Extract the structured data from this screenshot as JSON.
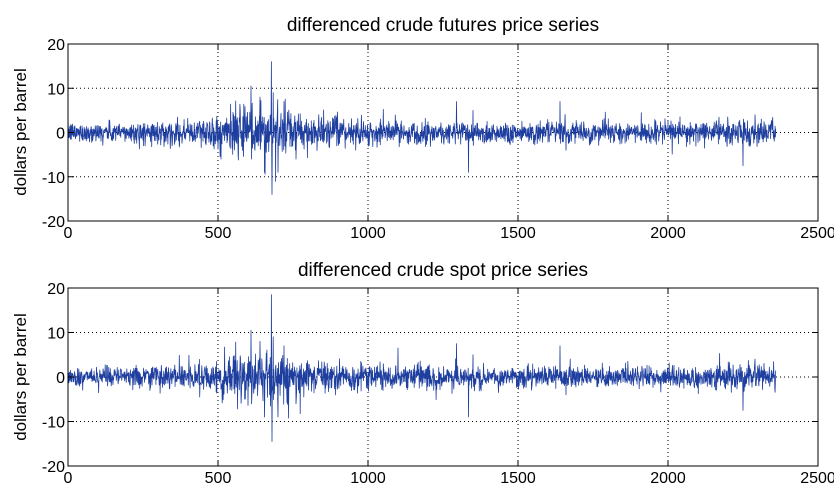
{
  "colors": {
    "series": "#1f3fa0",
    "axes": "#000000",
    "background": "#ffffff"
  },
  "chart_data": [
    {
      "type": "line",
      "title": "differenced crude futures price series",
      "xlabel": "",
      "ylabel": "dollars per barrel",
      "xlim": [
        0,
        2500
      ],
      "ylim": [
        -20,
        20
      ],
      "xticks": [
        0,
        500,
        1000,
        1500,
        2000,
        2500
      ],
      "yticks": [
        -20,
        -10,
        0,
        10,
        20
      ],
      "xtick_labels": [
        "0",
        "500",
        "1000",
        "1500",
        "2000",
        "2500"
      ],
      "ytick_labels": [
        "-20",
        "-10",
        "0",
        "10",
        "20"
      ],
      "grid": true,
      "n_points": 2360,
      "volatility_envelope": [
        [
          0,
          1.2
        ],
        [
          200,
          1.3
        ],
        [
          400,
          1.5
        ],
        [
          500,
          2.2
        ],
        [
          580,
          3.2
        ],
        [
          650,
          3.8
        ],
        [
          700,
          3.0
        ],
        [
          780,
          2.3
        ],
        [
          900,
          1.7
        ],
        [
          1100,
          1.4
        ],
        [
          1300,
          1.5
        ],
        [
          1500,
          1.4
        ],
        [
          1700,
          1.3
        ],
        [
          2000,
          1.3
        ],
        [
          2200,
          1.6
        ],
        [
          2360,
          1.5
        ]
      ],
      "spikes": [
        [
          610,
          10.5
        ],
        [
          612,
          -6
        ],
        [
          640,
          8
        ],
        [
          655,
          -9
        ],
        [
          678,
          16
        ],
        [
          680,
          -14
        ],
        [
          684,
          9
        ],
        [
          700,
          -9
        ],
        [
          720,
          7
        ],
        [
          760,
          -6
        ],
        [
          1295,
          7
        ],
        [
          1335,
          -9
        ],
        [
          1350,
          5
        ],
        [
          1640,
          7
        ],
        [
          1660,
          -4
        ],
        [
          2250,
          -7.5
        ],
        [
          2290,
          4
        ]
      ]
    },
    {
      "type": "line",
      "title": "differenced crude spot price series",
      "xlabel": "",
      "ylabel": "dollars per barrel",
      "xlim": [
        0,
        2500
      ],
      "ylim": [
        -20,
        20
      ],
      "xticks": [
        0,
        500,
        1000,
        1500,
        2000,
        2500
      ],
      "yticks": [
        -20,
        -10,
        0,
        10,
        20
      ],
      "xtick_labels": [
        "0",
        "500",
        "1000",
        "1500",
        "2000",
        "2500"
      ],
      "ytick_labels": [
        "-20",
        "-10",
        "0",
        "10",
        "20"
      ],
      "grid": true,
      "n_points": 2360,
      "volatility_envelope": [
        [
          0,
          1.2
        ],
        [
          200,
          1.3
        ],
        [
          400,
          1.5
        ],
        [
          500,
          2.2
        ],
        [
          580,
          3.2
        ],
        [
          650,
          3.8
        ],
        [
          700,
          3.0
        ],
        [
          780,
          2.3
        ],
        [
          900,
          1.7
        ],
        [
          1100,
          1.4
        ],
        [
          1300,
          1.5
        ],
        [
          1500,
          1.4
        ],
        [
          1700,
          1.3
        ],
        [
          2000,
          1.3
        ],
        [
          2200,
          1.6
        ],
        [
          2360,
          1.5
        ]
      ],
      "spikes": [
        [
          610,
          10.5
        ],
        [
          612,
          -6
        ],
        [
          640,
          8
        ],
        [
          655,
          -9
        ],
        [
          678,
          18.5
        ],
        [
          680,
          -14.5
        ],
        [
          684,
          9
        ],
        [
          700,
          -9
        ],
        [
          720,
          7
        ],
        [
          760,
          -6
        ],
        [
          1100,
          6.5
        ],
        [
          1295,
          7.5
        ],
        [
          1335,
          -9
        ],
        [
          1350,
          5
        ],
        [
          1640,
          7
        ],
        [
          1660,
          -4
        ],
        [
          2250,
          -7.5
        ],
        [
          2290,
          4
        ]
      ]
    }
  ]
}
